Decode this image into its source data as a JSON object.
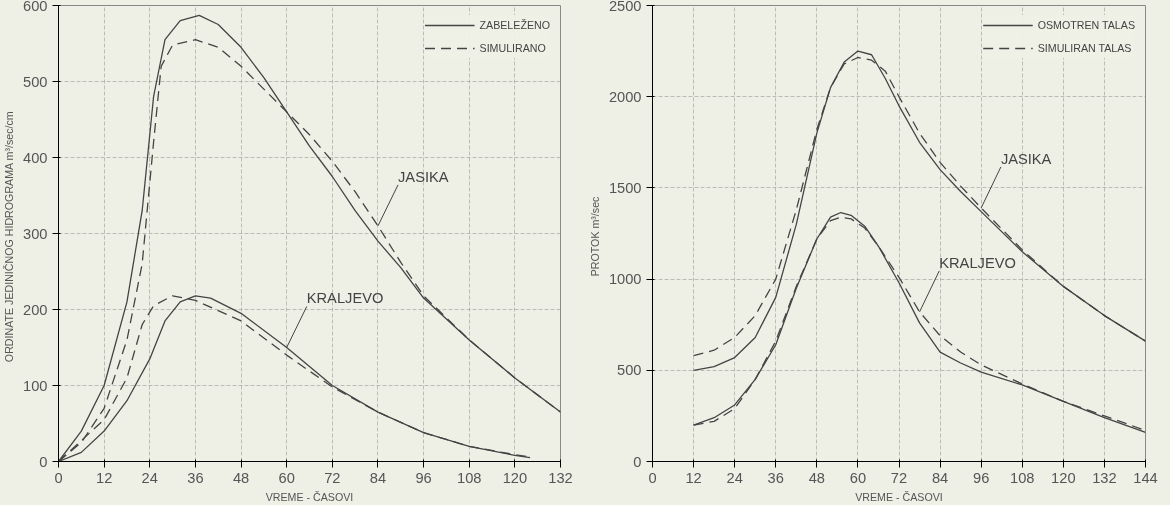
{
  "chart_data": [
    {
      "type": "line",
      "xlabel": "VREME - ČASOVI",
      "ylabel": "ORDINATE JEDINIČNOG HIDROGRAMA   m³/sec/cm",
      "xlim": [
        0,
        132
      ],
      "ylim": [
        0,
        600
      ],
      "xticks": [
        0,
        12,
        24,
        36,
        48,
        60,
        72,
        84,
        96,
        108,
        120,
        132
      ],
      "yticks": [
        0,
        100,
        200,
        300,
        400,
        500,
        600
      ],
      "grid": true,
      "legend": "top right",
      "marker": "none",
      "series": [
        {
          "name": "ZABELEŽENO",
          "color": "#444444",
          "line_style": "solid",
          "x": [
            0,
            6,
            12,
            18,
            22,
            25,
            28,
            32,
            37,
            42,
            48,
            54,
            60,
            66,
            72,
            78,
            84,
            90,
            96,
            108,
            120,
            132
          ],
          "values": [
            0,
            40,
            100,
            210,
            330,
            480,
            555,
            580,
            587,
            575,
            545,
            505,
            460,
            415,
            375,
            330,
            290,
            255,
            215,
            160,
            110,
            65
          ]
        },
        {
          "name": "SIMULIRANO",
          "color": "#444444",
          "line_style": "dashed",
          "x": [
            0,
            6,
            12,
            18,
            22,
            25,
            27,
            30,
            36,
            42,
            48,
            54,
            60,
            66,
            72,
            78,
            84,
            90,
            96,
            108,
            120,
            132
          ],
          "values": [
            0,
            25,
            70,
            160,
            260,
            420,
            520,
            548,
            555,
            545,
            520,
            490,
            460,
            430,
            395,
            355,
            310,
            262,
            218,
            160,
            110,
            65
          ]
        },
        {
          "color": "#444444",
          "line_style": "solid",
          "x": [
            0,
            6,
            12,
            18,
            24,
            28,
            32,
            36,
            40,
            48,
            60,
            72,
            84,
            96,
            108,
            120,
            124
          ],
          "values": [
            0,
            12,
            40,
            80,
            135,
            185,
            210,
            218,
            215,
            195,
            150,
            100,
            65,
            38,
            20,
            8,
            5
          ]
        },
        {
          "color": "#444444",
          "line_style": "dashed",
          "x": [
            0,
            12,
            18,
            22,
            25,
            30,
            36,
            48,
            60,
            72,
            84,
            96,
            108,
            120,
            124
          ],
          "values": [
            0,
            55,
            110,
            180,
            205,
            218,
            212,
            185,
            140,
            98,
            65,
            38,
            20,
            9,
            6
          ]
        }
      ],
      "annotations": [
        {
          "text": "JASIKA",
          "x": 84,
          "y": 310
        },
        {
          "text": "KRALJEVO",
          "x": 60,
          "y": 150
        }
      ]
    },
    {
      "type": "line",
      "xlabel": "VREME - ČASOVI",
      "ylabel": "PROTOK   m³/sec",
      "xlim": [
        0,
        144
      ],
      "ylim": [
        0,
        2500
      ],
      "xticks": [
        0,
        12,
        24,
        36,
        48,
        60,
        72,
        84,
        96,
        108,
        120,
        132,
        144
      ],
      "yticks": [
        0,
        500,
        1000,
        1500,
        2000,
        2500
      ],
      "grid": true,
      "legend": "top right",
      "marker": "none",
      "series": [
        {
          "name": "OSMOTREN TALAS",
          "color": "#444444",
          "line_style": "solid",
          "x": [
            12,
            18,
            24,
            30,
            36,
            42,
            48,
            52,
            56,
            60,
            64,
            68,
            72,
            78,
            84,
            90,
            96,
            108,
            120,
            132,
            144
          ],
          "values": [
            500,
            520,
            570,
            680,
            900,
            1300,
            1800,
            2050,
            2190,
            2250,
            2230,
            2100,
            1950,
            1750,
            1600,
            1480,
            1370,
            1150,
            960,
            800,
            660
          ]
        },
        {
          "name": "SIMULIRAN TALAS",
          "color": "#444444",
          "line_style": "dashed",
          "x": [
            12,
            18,
            24,
            30,
            36,
            42,
            48,
            52,
            56,
            60,
            64,
            68,
            72,
            78,
            84,
            90,
            96,
            108,
            120,
            132,
            144
          ],
          "values": [
            580,
            610,
            680,
            800,
            1000,
            1380,
            1820,
            2050,
            2180,
            2215,
            2200,
            2140,
            2000,
            1800,
            1640,
            1510,
            1390,
            1160,
            960,
            800,
            660
          ]
        },
        {
          "color": "#444444",
          "line_style": "solid",
          "x": [
            12,
            18,
            24,
            30,
            36,
            42,
            48,
            52,
            55,
            58,
            62,
            66,
            72,
            78,
            84,
            90,
            96,
            108,
            120,
            132,
            144
          ],
          "values": [
            200,
            240,
            310,
            450,
            640,
            950,
            1220,
            1340,
            1365,
            1350,
            1290,
            1180,
            980,
            760,
            600,
            540,
            490,
            420,
            330,
            240,
            160
          ]
        },
        {
          "color": "#444444",
          "line_style": "dashed",
          "x": [
            12,
            18,
            24,
            30,
            36,
            42,
            48,
            52,
            55,
            58,
            62,
            66,
            72,
            78,
            84,
            90,
            96,
            108,
            120,
            132,
            144
          ],
          "values": [
            200,
            220,
            290,
            450,
            660,
            960,
            1220,
            1320,
            1340,
            1330,
            1280,
            1180,
            1010,
            820,
            690,
            600,
            530,
            425,
            330,
            250,
            170
          ]
        }
      ],
      "annotations": [
        {
          "text": "JASIKA",
          "x": 96,
          "y": 1390
        },
        {
          "text": "KRALJEVO",
          "x": 78,
          "y": 820
        }
      ]
    }
  ]
}
